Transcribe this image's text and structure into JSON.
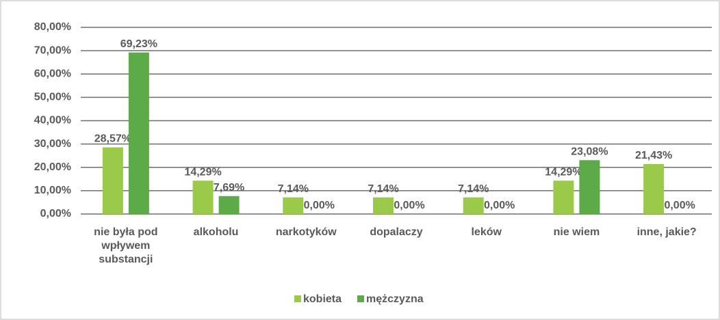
{
  "chart_data": {
    "type": "bar",
    "categories": [
      "nie była pod wpływem substancji",
      "alkoholu",
      "narkotyków",
      "dopalaczy",
      "leków",
      "nie wiem",
      "inne, jakie?"
    ],
    "series": [
      {
        "name": "kobieta",
        "color": "#9bc94a",
        "values": [
          28.57,
          14.29,
          7.14,
          7.14,
          7.14,
          14.29,
          21.43
        ],
        "value_labels": [
          "28,57%",
          "14,29%",
          "7,14%",
          "7,14%",
          "7,14%",
          "14,29%",
          "21,43%"
        ]
      },
      {
        "name": "mężczyzna",
        "color": "#5caa48",
        "values": [
          69.23,
          7.69,
          0,
          0,
          0,
          23.08,
          0
        ],
        "value_labels": [
          "69,23%",
          "7,69%",
          "0,00%",
          "0,00%",
          "0,00%",
          "23,08%",
          "0,00%"
        ]
      }
    ],
    "ylim": [
      0,
      80
    ],
    "yticks": [
      {
        "value": 0,
        "label": "0,00%"
      },
      {
        "value": 10,
        "label": "10,00%"
      },
      {
        "value": 20,
        "label": "20,00%"
      },
      {
        "value": 30,
        "label": "30,00%"
      },
      {
        "value": 40,
        "label": "40,00%"
      },
      {
        "value": 50,
        "label": "50,00%"
      },
      {
        "value": 60,
        "label": "60,00%"
      },
      {
        "value": 70,
        "label": "70,00%"
      },
      {
        "value": 80,
        "label": "80,00%"
      }
    ],
    "grid": true,
    "legend": "bottom"
  }
}
